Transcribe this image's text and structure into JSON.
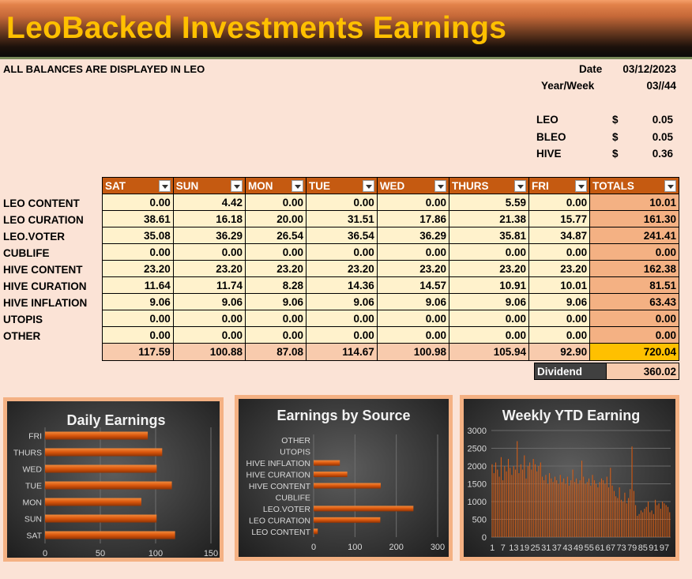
{
  "title": "LeoBacked Investments Earnings",
  "note": "ALL BALANCES ARE DISPLAYED IN LEO",
  "info": {
    "date_label": "Date",
    "date_value": "03/12/2023",
    "week_label": "Year/Week",
    "week_value": "03//44",
    "prices": [
      {
        "label": "LEO",
        "currency": "$",
        "value": "0.05"
      },
      {
        "label": "BLEO",
        "currency": "$",
        "value": "0.05"
      },
      {
        "label": "HIVE",
        "currency": "$",
        "value": "0.36"
      }
    ]
  },
  "table": {
    "headers": [
      "SAT",
      "SUN",
      "MON",
      "TUE",
      "WED",
      "THURS",
      "FRI",
      "TOTALS"
    ],
    "rows": [
      {
        "label": "LEO CONTENT",
        "values": [
          "0.00",
          "4.42",
          "0.00",
          "0.00",
          "0.00",
          "5.59",
          "0.00"
        ],
        "total": "10.01"
      },
      {
        "label": "LEO CURATION",
        "values": [
          "38.61",
          "16.18",
          "20.00",
          "31.51",
          "17.86",
          "21.38",
          "15.77"
        ],
        "total": "161.30"
      },
      {
        "label": "LEO.VOTER",
        "values": [
          "35.08",
          "36.29",
          "26.54",
          "36.54",
          "36.29",
          "35.81",
          "34.87"
        ],
        "total": "241.41"
      },
      {
        "label": "CUBLIFE",
        "values": [
          "0.00",
          "0.00",
          "0.00",
          "0.00",
          "0.00",
          "0.00",
          "0.00"
        ],
        "total": "0.00"
      },
      {
        "label": "HIVE CONTENT",
        "values": [
          "23.20",
          "23.20",
          "23.20",
          "23.20",
          "23.20",
          "23.20",
          "23.20"
        ],
        "total": "162.38"
      },
      {
        "label": "HIVE CURATION",
        "values": [
          "11.64",
          "11.74",
          "8.28",
          "14.36",
          "14.57",
          "10.91",
          "10.01"
        ],
        "total": "81.51"
      },
      {
        "label": "HIVE INFLATION",
        "values": [
          "9.06",
          "9.06",
          "9.06",
          "9.06",
          "9.06",
          "9.06",
          "9.06"
        ],
        "total": "63.43"
      },
      {
        "label": "UTOPIS",
        "values": [
          "0.00",
          "0.00",
          "0.00",
          "0.00",
          "0.00",
          "0.00",
          "0.00"
        ],
        "total": "0.00"
      },
      {
        "label": "OTHER",
        "values": [
          "0.00",
          "0.00",
          "0.00",
          "0.00",
          "0.00",
          "0.00",
          "0.00"
        ],
        "total": "0.00"
      }
    ],
    "sums": [
      "117.59",
      "100.88",
      "87.08",
      "114.67",
      "100.98",
      "105.94",
      "92.90"
    ],
    "grand_total": "720.04",
    "dividend_label": "Dividend",
    "dividend_value": "360.02"
  },
  "colors": {
    "header": "#c55a11",
    "cell": "#fff2cc",
    "total": "#f4b183",
    "grand": "#ffc000",
    "bar": "#e0620f",
    "title": "#ffc000"
  },
  "chart_data": [
    {
      "type": "bar",
      "title": "Daily Earnings",
      "orientation": "horizontal",
      "categories": [
        "SAT",
        "SUN",
        "MON",
        "TUE",
        "WED",
        "THURS",
        "FRI"
      ],
      "values": [
        117.59,
        100.88,
        87.08,
        114.67,
        100.98,
        105.94,
        92.9
      ],
      "xlim": [
        0,
        150
      ],
      "xticks": [
        "0",
        "50",
        "100",
        "150"
      ],
      "grid": true
    },
    {
      "type": "bar",
      "title": "Earnings  by Source",
      "orientation": "horizontal",
      "categories": [
        "LEO CONTENT",
        "LEO CURATION",
        "LEO.VOTER",
        "CUBLIFE",
        "HIVE CONTENT",
        "HIVE CURATION",
        "HIVE INFLATION",
        "UTOPIS",
        "OTHER"
      ],
      "values": [
        10.01,
        161.3,
        241.41,
        0,
        162.38,
        81.51,
        63.43,
        0,
        0
      ],
      "xlim": [
        0,
        300
      ],
      "xticks": [
        "0",
        "100",
        "200",
        "300"
      ],
      "grid": true
    },
    {
      "type": "bar",
      "title": "Weekly YTD Earning",
      "ylim": [
        0,
        3000
      ],
      "yticks": [
        "0",
        "500",
        "1000",
        "1500",
        "2000",
        "2500",
        "3000"
      ],
      "xticks": [
        "1",
        "7",
        "13",
        "19",
        "25",
        "31",
        "37",
        "43",
        "49",
        "55",
        "61",
        "67",
        "73",
        "79",
        "85",
        "91",
        "97"
      ],
      "x": [
        1,
        2,
        3,
        4,
        5,
        6,
        7,
        8,
        9,
        10,
        11,
        12,
        13,
        14,
        15,
        16,
        17,
        18,
        19,
        20,
        21,
        22,
        23,
        24,
        25,
        26,
        27,
        28,
        29,
        30,
        31,
        32,
        33,
        34,
        35,
        36,
        37,
        38,
        39,
        40,
        41,
        42,
        43,
        44,
        45,
        46,
        47,
        48,
        49,
        50,
        51,
        52,
        53,
        54,
        55,
        56,
        57,
        58,
        59,
        60,
        61,
        62,
        63,
        64,
        65,
        66,
        67,
        68,
        69,
        70,
        71,
        72,
        73,
        74,
        75,
        76,
        77,
        78,
        79,
        80,
        81,
        82,
        83,
        84,
        85,
        86,
        87,
        88,
        89,
        90,
        91,
        92,
        93,
        94,
        95,
        96,
        97,
        98,
        99,
        100
      ],
      "values": [
        2050,
        1800,
        2100,
        1900,
        1700,
        2250,
        1600,
        2000,
        1850,
        2200,
        1950,
        1750,
        2000,
        1900,
        2700,
        1800,
        2050,
        1900,
        2300,
        1650,
        2000,
        2100,
        1900,
        2200,
        2050,
        1850,
        2000,
        2100,
        1700,
        1600,
        1750,
        1500,
        1800,
        1650,
        1550,
        1700,
        1600,
        1500,
        1750,
        1550,
        1650,
        1500,
        1700,
        1450,
        1600,
        1900,
        1550,
        1650,
        1500,
        1600,
        2150,
        1700,
        1500,
        1550,
        1650,
        1450,
        1750,
        1600,
        1500,
        1400,
        1550,
        1650,
        1600,
        1500,
        1700,
        1400,
        1950,
        1450,
        1300,
        1150,
        1100,
        1400,
        1050,
        1000,
        1250,
        950,
        1100,
        1350,
        2550,
        1300,
        900,
        600,
        650,
        750,
        700,
        800,
        850,
        1000,
        700,
        750,
        650,
        1050,
        900,
        950,
        800,
        1000,
        950,
        900,
        850,
        700
      ],
      "grid": true
    }
  ]
}
